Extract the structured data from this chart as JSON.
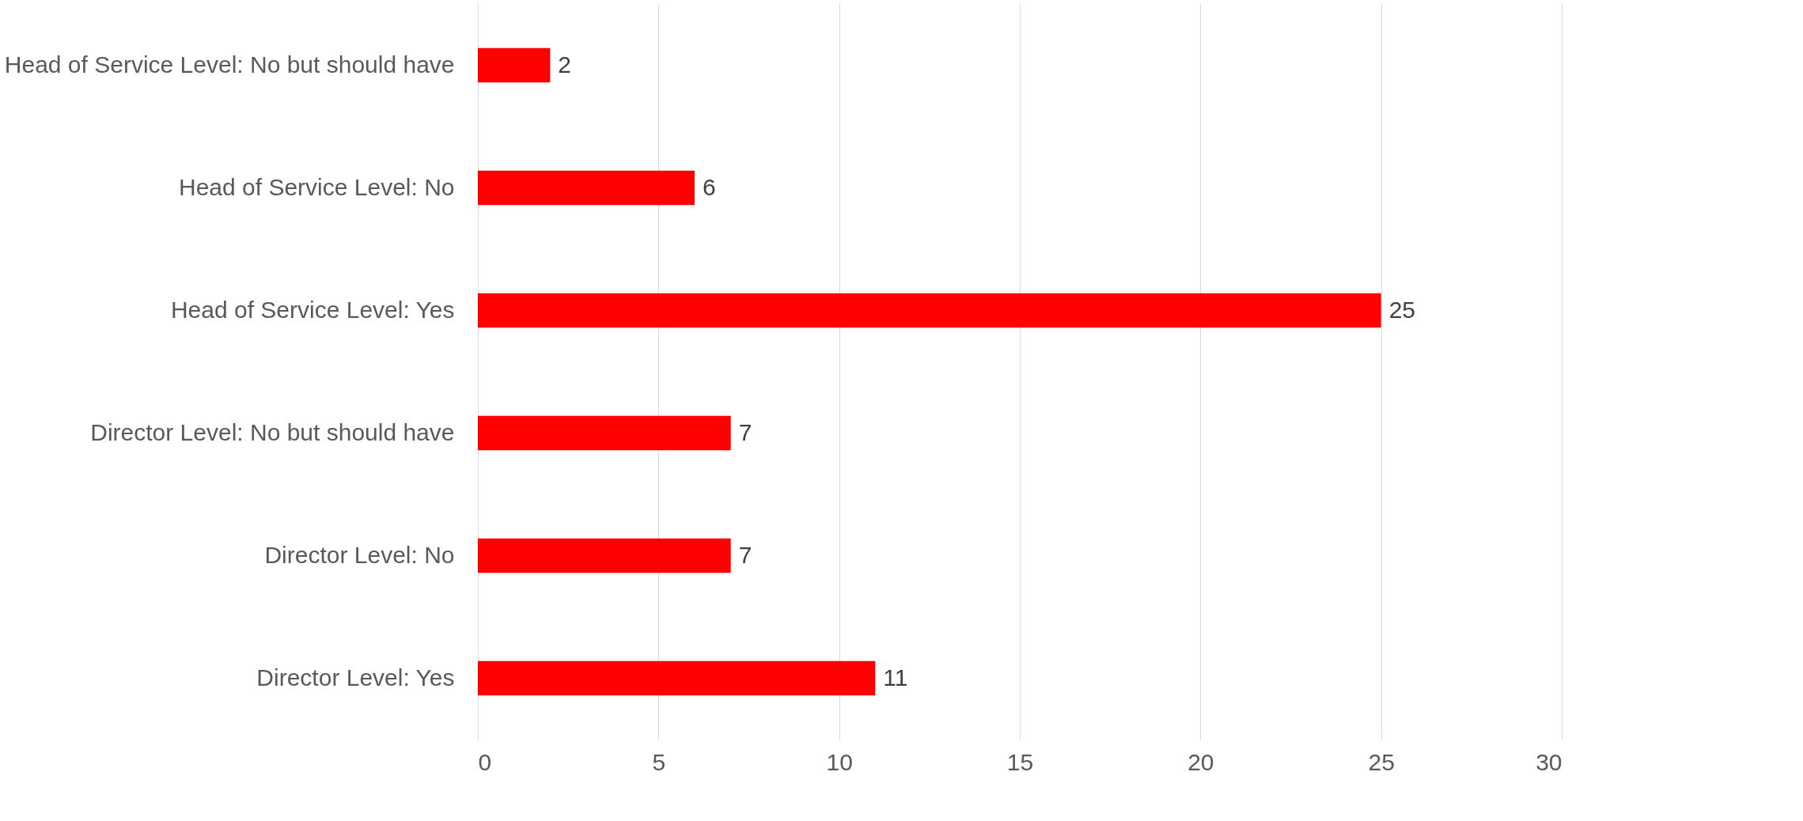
{
  "chart_data": {
    "type": "bar",
    "orientation": "horizontal",
    "categories": [
      "Head of Service Level: No but should have",
      "Head of Service Level: No",
      "Head of Service Level: Yes",
      "Director Level: No but should have",
      "Director Level: No",
      "Director Level: Yes"
    ],
    "values": [
      2,
      6,
      25,
      7,
      7,
      11
    ],
    "color": "#ff0000",
    "xlim": [
      0,
      30
    ],
    "xticks": [
      0,
      5,
      10,
      15,
      20,
      25,
      30
    ],
    "grid": "x",
    "data_labels": true
  }
}
